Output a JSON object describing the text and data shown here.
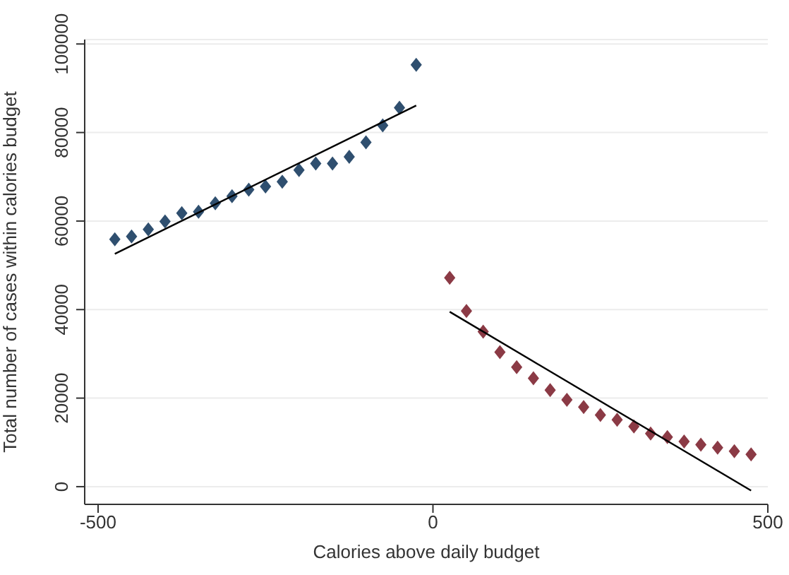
{
  "chart_data": {
    "type": "scatter",
    "xlabel": "Calories above daily budget",
    "ylabel": "Total number of cases within calories budget",
    "xlim": [
      -520,
      500
    ],
    "xticks": [
      -500,
      0,
      500
    ],
    "ylim": [
      -4000,
      101000
    ],
    "yticks": [
      0,
      20000,
      40000,
      60000,
      80000,
      100000
    ],
    "grid": "y",
    "series": [
      {
        "marker": "diamond",
        "color": "#2f4f6f",
        "x": [
          -475,
          -450,
          -425,
          -400,
          -375,
          -350,
          -325,
          -300,
          -275,
          -250,
          -225,
          -200,
          -175,
          -150,
          -125,
          -100,
          -75,
          -50,
          -25
        ],
        "values": [
          55900,
          56500,
          58100,
          59900,
          61800,
          62100,
          64000,
          65600,
          67100,
          67800,
          68900,
          71500,
          73000,
          73000,
          74500,
          77800,
          81600,
          85600,
          95300
        ]
      },
      {
        "marker": "diamond",
        "color": "#8b3a45",
        "x": [
          25,
          50,
          75,
          100,
          125,
          150,
          175,
          200,
          225,
          250,
          275,
          300,
          325,
          350,
          375,
          400,
          425,
          450,
          475
        ],
        "values": [
          47200,
          39700,
          35000,
          30400,
          27000,
          24500,
          21800,
          19600,
          18000,
          16200,
          15100,
          13600,
          12000,
          11200,
          10200,
          9500,
          8800,
          8000,
          7300
        ]
      },
      {
        "type": "line",
        "marker": "none",
        "color": "#000000",
        "x": [
          -475,
          -25
        ],
        "values": [
          52600,
          86100
        ]
      },
      {
        "type": "line",
        "marker": "none",
        "color": "#000000",
        "x": [
          25,
          475
        ],
        "values": [
          39500,
          -900
        ]
      }
    ]
  }
}
